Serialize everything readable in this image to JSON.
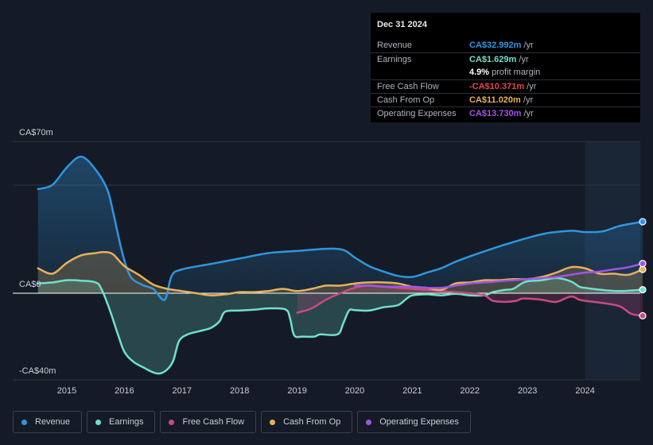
{
  "chart_data": {
    "type": "area",
    "y_axis_top_label": "CA$70m",
    "y_axis_zero_label": "CA$0",
    "y_axis_bottom_label": "-CA$40m",
    "ylim": [
      -40,
      70
    ],
    "xlim": [
      2014.5,
      2025.0
    ],
    "x_ticks": [
      "2015",
      "2016",
      "2017",
      "2018",
      "2019",
      "2020",
      "2021",
      "2022",
      "2023",
      "2024"
    ],
    "forecast_start": 2024.0,
    "series": [
      {
        "name": "Revenue",
        "color": "#2f96e0",
        "fill": true,
        "points": [
          [
            2014.5,
            48
          ],
          [
            2014.75,
            50
          ],
          [
            2015.0,
            58
          ],
          [
            2015.25,
            63
          ],
          [
            2015.5,
            57
          ],
          [
            2015.7,
            48
          ],
          [
            2015.8,
            38
          ],
          [
            2015.95,
            20
          ],
          [
            2016.1,
            8
          ],
          [
            2016.3,
            4
          ],
          [
            2016.5,
            2
          ],
          [
            2016.7,
            -3
          ],
          [
            2016.82,
            8
          ],
          [
            2017.0,
            11
          ],
          [
            2017.5,
            13.5
          ],
          [
            2018.0,
            16
          ],
          [
            2018.5,
            18.5
          ],
          [
            2019.0,
            19.5
          ],
          [
            2019.5,
            20.5
          ],
          [
            2019.8,
            20
          ],
          [
            2020.0,
            16.5
          ],
          [
            2020.25,
            12.5
          ],
          [
            2020.5,
            10
          ],
          [
            2020.75,
            8
          ],
          [
            2021.0,
            7.5
          ],
          [
            2021.25,
            9.5
          ],
          [
            2021.5,
            11.5
          ],
          [
            2021.75,
            14.5
          ],
          [
            2022.0,
            17
          ],
          [
            2022.5,
            21.5
          ],
          [
            2023.0,
            25.5
          ],
          [
            2023.3,
            27.5
          ],
          [
            2023.6,
            28.5
          ],
          [
            2023.8,
            28.8
          ],
          [
            2024.0,
            28.2
          ],
          [
            2024.3,
            28.5
          ],
          [
            2024.6,
            31
          ],
          [
            2025.0,
            33
          ]
        ]
      },
      {
        "name": "Earnings",
        "color": "#70e0cc",
        "fill": true,
        "points": [
          [
            2014.5,
            4.5
          ],
          [
            2014.75,
            5
          ],
          [
            2015.0,
            6
          ],
          [
            2015.25,
            5.8
          ],
          [
            2015.5,
            5
          ],
          [
            2015.6,
            2
          ],
          [
            2015.75,
            -8
          ],
          [
            2015.9,
            -20
          ],
          [
            2016.0,
            -27
          ],
          [
            2016.15,
            -31.5
          ],
          [
            2016.35,
            -34.5
          ],
          [
            2016.5,
            -36.5
          ],
          [
            2016.62,
            -37
          ],
          [
            2016.75,
            -35
          ],
          [
            2016.85,
            -31
          ],
          [
            2016.95,
            -22
          ],
          [
            2017.1,
            -19
          ],
          [
            2017.3,
            -17.5
          ],
          [
            2017.5,
            -16
          ],
          [
            2017.65,
            -13
          ],
          [
            2017.75,
            -8.5
          ],
          [
            2018.0,
            -8
          ],
          [
            2018.3,
            -7.5
          ],
          [
            2018.5,
            -7
          ],
          [
            2018.8,
            -7.5
          ],
          [
            2018.88,
            -12
          ],
          [
            2018.95,
            -19.5
          ],
          [
            2019.1,
            -20
          ],
          [
            2019.3,
            -20
          ],
          [
            2019.4,
            -19
          ],
          [
            2019.7,
            -19
          ],
          [
            2019.8,
            -14
          ],
          [
            2019.9,
            -8
          ],
          [
            2020.0,
            -7.8
          ],
          [
            2020.25,
            -8
          ],
          [
            2020.5,
            -6.5
          ],
          [
            2020.75,
            -5.5
          ],
          [
            2020.9,
            -2.5
          ],
          [
            2021.0,
            -1
          ],
          [
            2021.25,
            -0.5
          ],
          [
            2021.5,
            -1
          ],
          [
            2021.75,
            -0.3
          ],
          [
            2022.0,
            -1
          ],
          [
            2022.25,
            -1
          ],
          [
            2022.4,
            0.5
          ],
          [
            2022.6,
            1.5
          ],
          [
            2022.75,
            2
          ],
          [
            2022.9,
            4.5
          ],
          [
            2023.0,
            5.5
          ],
          [
            2023.25,
            6
          ],
          [
            2023.5,
            7
          ],
          [
            2023.75,
            5.5
          ],
          [
            2023.9,
            3
          ],
          [
            2024.0,
            2.5
          ],
          [
            2024.3,
            1.5
          ],
          [
            2024.6,
            1
          ],
          [
            2025.0,
            1.6
          ]
        ]
      },
      {
        "name": "Free Cash Flow",
        "color": "#c84a84",
        "fill": true,
        "points": [
          [
            2019.0,
            -9
          ],
          [
            2019.25,
            -7
          ],
          [
            2019.5,
            -3
          ],
          [
            2019.75,
            0
          ],
          [
            2020.0,
            2.5
          ],
          [
            2020.25,
            3.5
          ],
          [
            2020.5,
            3
          ],
          [
            2020.75,
            2.5
          ],
          [
            2021.0,
            2
          ],
          [
            2021.25,
            1.5
          ],
          [
            2021.5,
            1
          ],
          [
            2021.75,
            0.5
          ],
          [
            2022.0,
            0
          ],
          [
            2022.25,
            -1
          ],
          [
            2022.4,
            -3.5
          ],
          [
            2022.6,
            -4
          ],
          [
            2022.8,
            -3.5
          ],
          [
            2022.9,
            -2.5
          ],
          [
            2023.0,
            -2.5
          ],
          [
            2023.25,
            -3
          ],
          [
            2023.5,
            -4
          ],
          [
            2023.75,
            -1.5
          ],
          [
            2023.9,
            -3
          ],
          [
            2024.0,
            -3.5
          ],
          [
            2024.3,
            -4.5
          ],
          [
            2024.6,
            -6
          ],
          [
            2024.8,
            -9.5
          ],
          [
            2025.0,
            -10.4
          ]
        ]
      },
      {
        "name": "Cash From Op",
        "color": "#e8b05a",
        "fill": true,
        "points": [
          [
            2014.5,
            11.5
          ],
          [
            2014.75,
            9
          ],
          [
            2015.0,
            14
          ],
          [
            2015.25,
            17.5
          ],
          [
            2015.5,
            18.5
          ],
          [
            2015.65,
            19
          ],
          [
            2015.8,
            18
          ],
          [
            2016.0,
            12.5
          ],
          [
            2016.25,
            8.5
          ],
          [
            2016.5,
            4
          ],
          [
            2016.75,
            2
          ],
          [
            2017.0,
            1
          ],
          [
            2017.25,
            0
          ],
          [
            2017.5,
            -1
          ],
          [
            2017.75,
            -0.5
          ],
          [
            2018.0,
            0.5
          ],
          [
            2018.25,
            0.5
          ],
          [
            2018.5,
            1
          ],
          [
            2018.75,
            2
          ],
          [
            2019.0,
            1
          ],
          [
            2019.25,
            2
          ],
          [
            2019.5,
            3.5
          ],
          [
            2019.75,
            3.5
          ],
          [
            2020.0,
            4.5
          ],
          [
            2020.25,
            5
          ],
          [
            2020.5,
            5
          ],
          [
            2020.75,
            4.5
          ],
          [
            2021.0,
            3
          ],
          [
            2021.25,
            2.5
          ],
          [
            2021.5,
            1.5
          ],
          [
            2021.75,
            4.5
          ],
          [
            2022.0,
            5
          ],
          [
            2022.25,
            6
          ],
          [
            2022.5,
            6
          ],
          [
            2022.75,
            6.5
          ],
          [
            2023.0,
            6.5
          ],
          [
            2023.25,
            7.5
          ],
          [
            2023.5,
            9.5
          ],
          [
            2023.75,
            12
          ],
          [
            2024.0,
            11.5
          ],
          [
            2024.25,
            9
          ],
          [
            2024.5,
            9
          ],
          [
            2024.75,
            8.5
          ],
          [
            2025.0,
            11
          ]
        ]
      },
      {
        "name": "Operating Expenses",
        "color": "#a254e8",
        "fill": false,
        "points": [
          [
            2020.0,
            3.5
          ],
          [
            2020.25,
            3.5
          ],
          [
            2020.5,
            3
          ],
          [
            2020.75,
            3
          ],
          [
            2021.0,
            3
          ],
          [
            2021.25,
            2.5
          ],
          [
            2021.5,
            2.5
          ],
          [
            2021.75,
            3.5
          ],
          [
            2022.0,
            4.5
          ],
          [
            2022.25,
            5
          ],
          [
            2022.5,
            5.5
          ],
          [
            2022.75,
            6
          ],
          [
            2023.0,
            6.5
          ],
          [
            2023.25,
            7
          ],
          [
            2023.5,
            7.5
          ],
          [
            2023.75,
            8.5
          ],
          [
            2024.0,
            9.5
          ],
          [
            2024.25,
            10
          ],
          [
            2024.5,
            11
          ],
          [
            2024.75,
            12
          ],
          [
            2025.0,
            13.7
          ]
        ]
      }
    ]
  },
  "tooltip": {
    "date": "Dec 31 2024",
    "rows": [
      {
        "label": "Revenue",
        "value": "CA$32.992m",
        "unit": "/yr",
        "color": "#2f96e0"
      },
      {
        "label": "Earnings",
        "value": "CA$1.629m",
        "unit": "/yr",
        "color": "#70e0cc"
      },
      {
        "label": "",
        "value": "4.9%",
        "unit": "profit margin",
        "color": "#ffffff"
      },
      {
        "label": "Free Cash Flow",
        "value": "-CA$10.371m",
        "unit": "/yr",
        "color": "#e8414e"
      },
      {
        "label": "Cash From Op",
        "value": "CA$11.020m",
        "unit": "/yr",
        "color": "#e8b05a"
      },
      {
        "label": "Operating Expenses",
        "value": "CA$13.730m",
        "unit": "/yr",
        "color": "#a254e8"
      }
    ]
  },
  "legend": [
    {
      "label": "Revenue",
      "color": "#2f96e0"
    },
    {
      "label": "Earnings",
      "color": "#70e0cc"
    },
    {
      "label": "Free Cash Flow",
      "color": "#c84a84"
    },
    {
      "label": "Cash From Op",
      "color": "#e8b05a"
    },
    {
      "label": "Operating Expenses",
      "color": "#a254e8"
    }
  ]
}
